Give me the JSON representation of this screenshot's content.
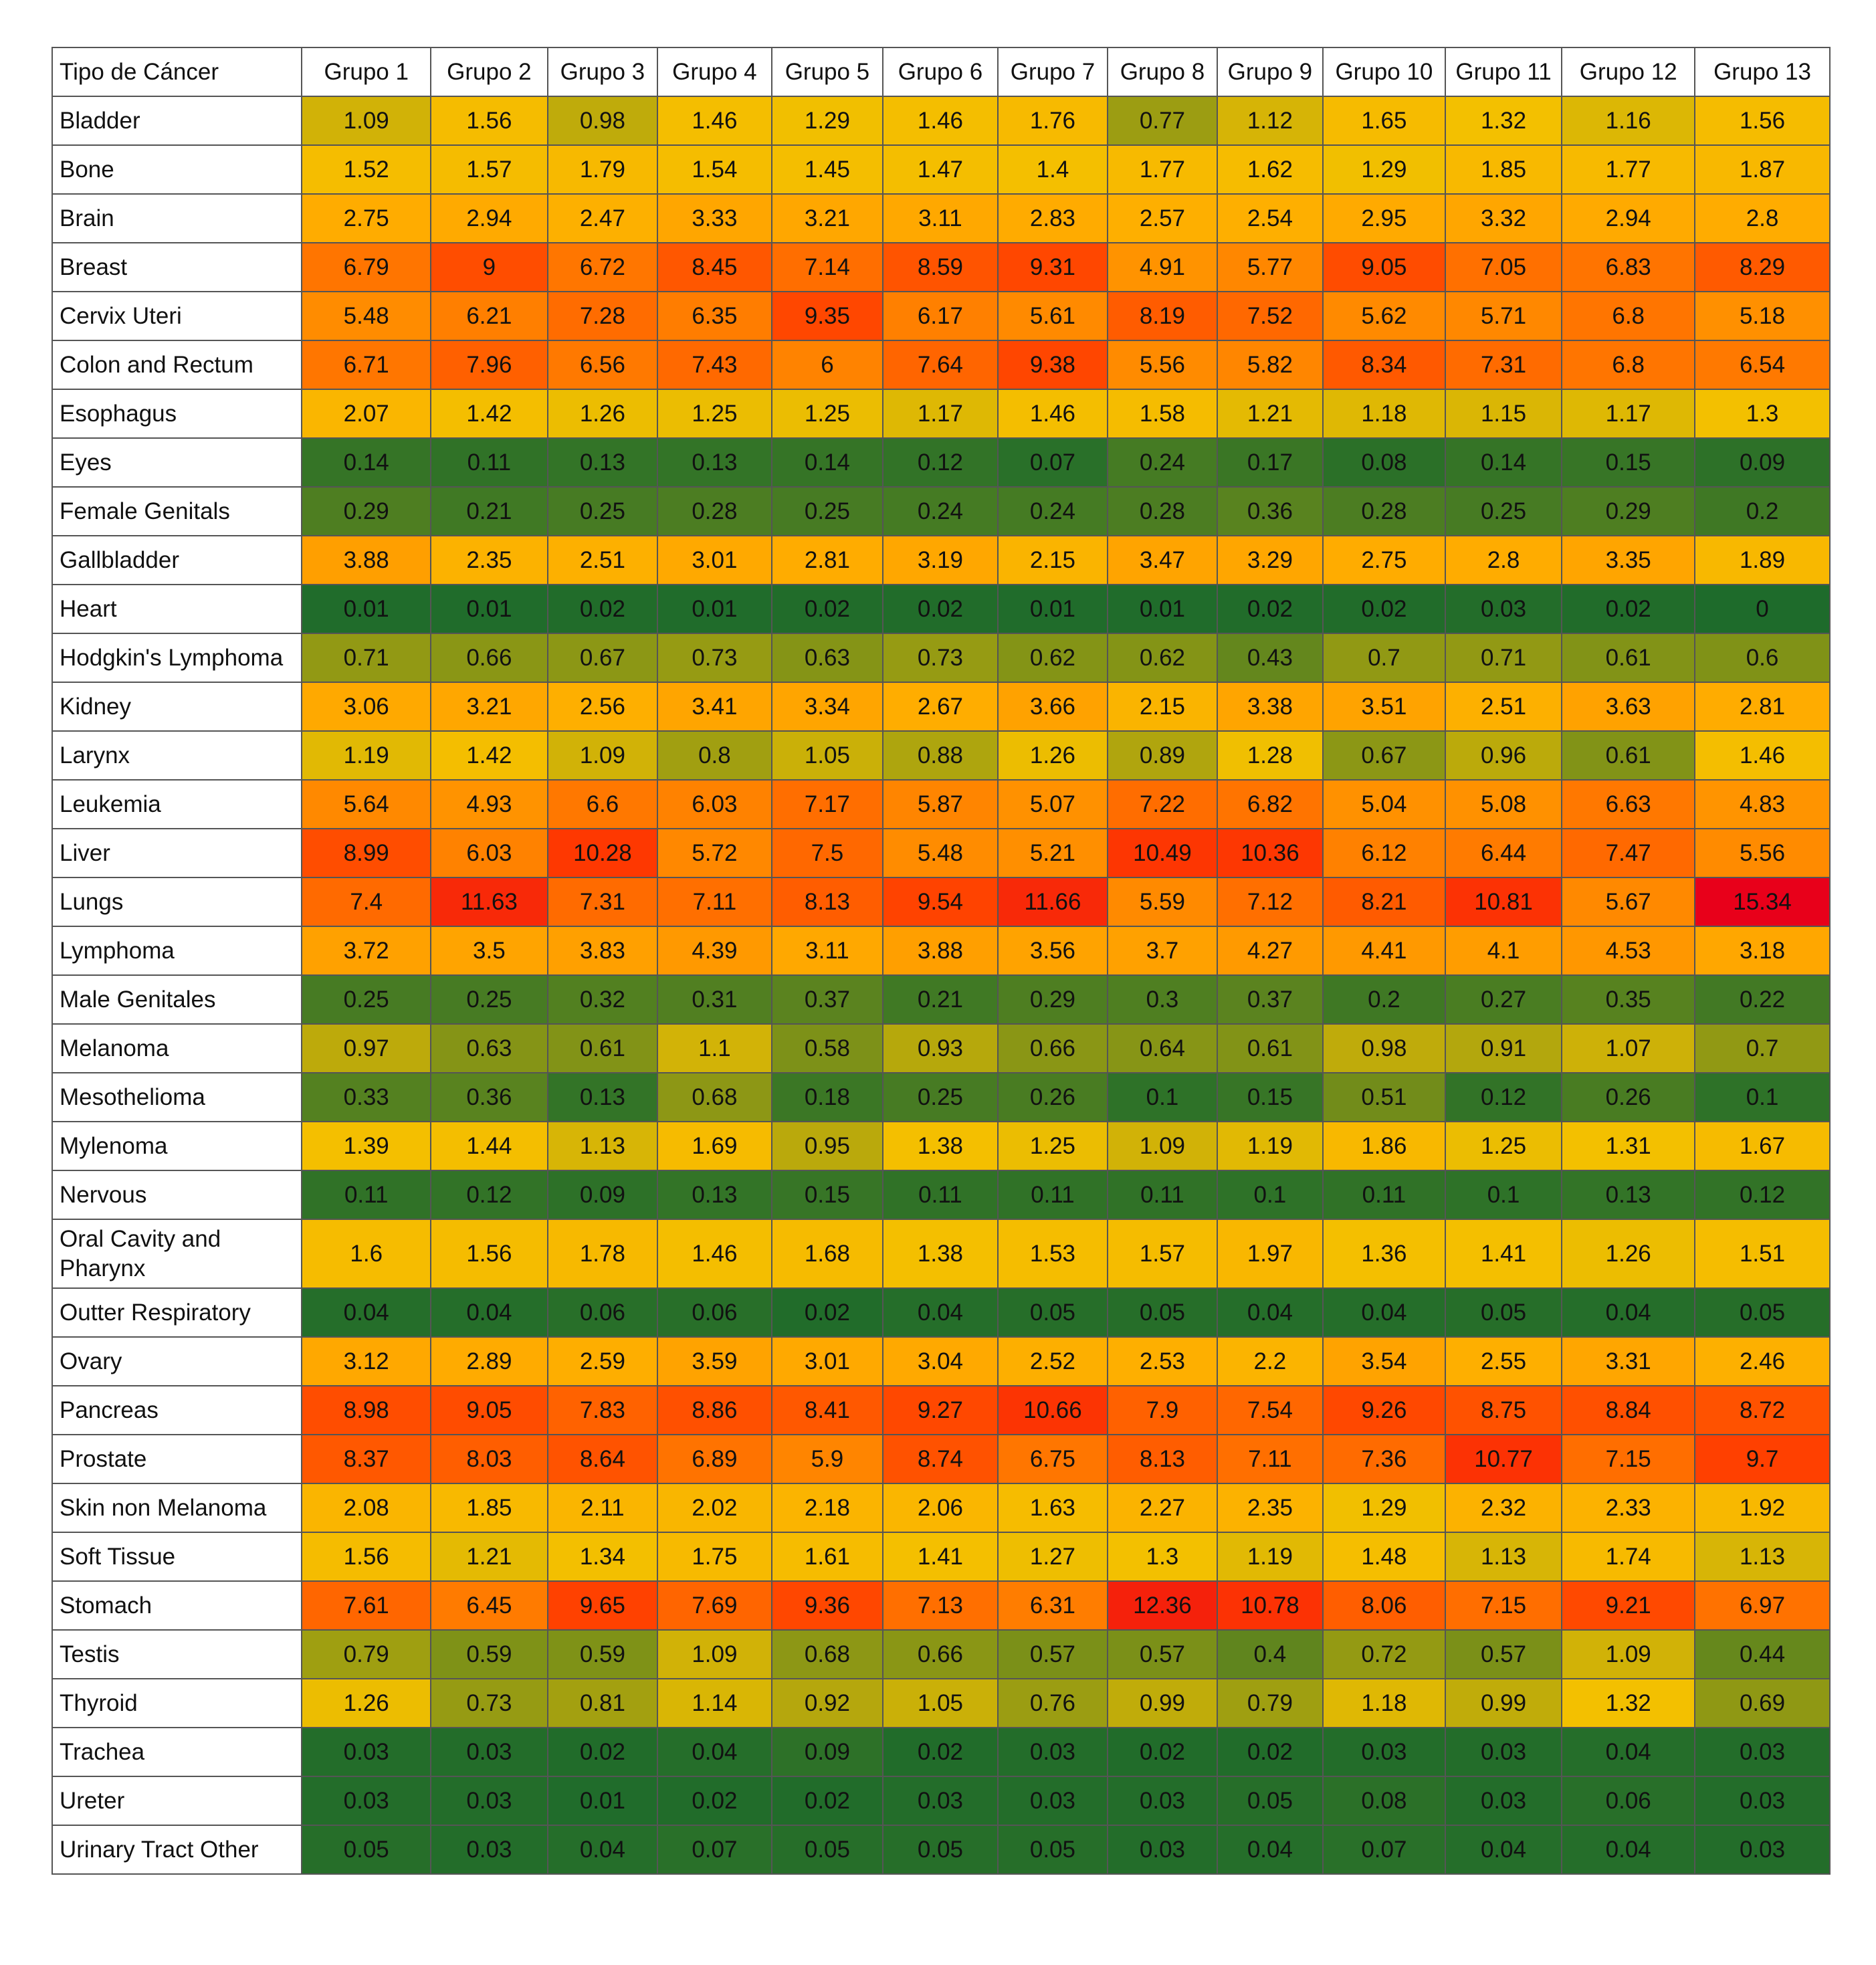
{
  "chart_data": {
    "type": "heatmap",
    "corner_label": "Tipo de Cáncer",
    "columns": [
      "Grupo 1",
      "Grupo 2",
      "Grupo 3",
      "Grupo 4",
      "Grupo 5",
      "Grupo 6",
      "Grupo 7",
      "Grupo 8",
      "Grupo 9",
      "Grupo 10",
      "Grupo 11",
      "Grupo 12",
      "Grupo 13"
    ],
    "rows": [
      {
        "label": "Bladder",
        "values": [
          1.09,
          1.56,
          0.98,
          1.46,
          1.29,
          1.46,
          1.76,
          0.77,
          1.12,
          1.65,
          1.32,
          1.16,
          1.56
        ]
      },
      {
        "label": "Bone",
        "values": [
          1.52,
          1.57,
          1.79,
          1.54,
          1.45,
          1.47,
          1.4,
          1.77,
          1.62,
          1.29,
          1.85,
          1.77,
          1.87
        ]
      },
      {
        "label": "Brain",
        "values": [
          2.75,
          2.94,
          2.47,
          3.33,
          3.21,
          3.11,
          2.83,
          2.57,
          2.54,
          2.95,
          3.32,
          2.94,
          2.8
        ]
      },
      {
        "label": "Breast",
        "values": [
          6.79,
          9,
          6.72,
          8.45,
          7.14,
          8.59,
          9.31,
          4.91,
          5.77,
          9.05,
          7.05,
          6.83,
          8.29
        ]
      },
      {
        "label": "Cervix Uteri",
        "values": [
          5.48,
          6.21,
          7.28,
          6.35,
          9.35,
          6.17,
          5.61,
          8.19,
          7.52,
          5.62,
          5.71,
          6.8,
          5.18
        ]
      },
      {
        "label": "Colon and Rectum",
        "values": [
          6.71,
          7.96,
          6.56,
          7.43,
          6,
          7.64,
          9.38,
          5.56,
          5.82,
          8.34,
          7.31,
          6.8,
          6.54
        ]
      },
      {
        "label": "Esophagus",
        "values": [
          2.07,
          1.42,
          1.26,
          1.25,
          1.25,
          1.17,
          1.46,
          1.58,
          1.21,
          1.18,
          1.15,
          1.17,
          1.3
        ]
      },
      {
        "label": "Eyes",
        "values": [
          0.14,
          0.11,
          0.13,
          0.13,
          0.14,
          0.12,
          0.07,
          0.24,
          0.17,
          0.08,
          0.14,
          0.15,
          0.09
        ]
      },
      {
        "label": "Female Genitals",
        "values": [
          0.29,
          0.21,
          0.25,
          0.28,
          0.25,
          0.24,
          0.24,
          0.28,
          0.36,
          0.28,
          0.25,
          0.29,
          0.2
        ]
      },
      {
        "label": "Gallbladder",
        "values": [
          3.88,
          2.35,
          2.51,
          3.01,
          2.81,
          3.19,
          2.15,
          3.47,
          3.29,
          2.75,
          2.8,
          3.35,
          1.89
        ]
      },
      {
        "label": "Heart",
        "values": [
          0.01,
          0.01,
          0.02,
          0.01,
          0.02,
          0.02,
          0.01,
          0.01,
          0.02,
          0.02,
          0.03,
          0.02,
          0
        ]
      },
      {
        "label": "Hodgkin's Lymphoma",
        "values": [
          0.71,
          0.66,
          0.67,
          0.73,
          0.63,
          0.73,
          0.62,
          0.62,
          0.43,
          0.7,
          0.71,
          0.61,
          0.6
        ]
      },
      {
        "label": "Kidney",
        "values": [
          3.06,
          3.21,
          2.56,
          3.41,
          3.34,
          2.67,
          3.66,
          2.15,
          3.38,
          3.51,
          2.51,
          3.63,
          2.81
        ]
      },
      {
        "label": "Larynx",
        "values": [
          1.19,
          1.42,
          1.09,
          0.8,
          1.05,
          0.88,
          1.26,
          0.89,
          1.28,
          0.67,
          0.96,
          0.61,
          1.46
        ]
      },
      {
        "label": "Leukemia",
        "values": [
          5.64,
          4.93,
          6.6,
          6.03,
          7.17,
          5.87,
          5.07,
          7.22,
          6.82,
          5.04,
          5.08,
          6.63,
          4.83
        ]
      },
      {
        "label": "Liver",
        "values": [
          8.99,
          6.03,
          10.28,
          5.72,
          7.5,
          5.48,
          5.21,
          10.49,
          10.36,
          6.12,
          6.44,
          7.47,
          5.56
        ]
      },
      {
        "label": "Lungs",
        "values": [
          7.4,
          11.63,
          7.31,
          7.11,
          8.13,
          9.54,
          11.66,
          5.59,
          7.12,
          8.21,
          10.81,
          5.67,
          15.34
        ]
      },
      {
        "label": "Lymphoma",
        "values": [
          3.72,
          3.5,
          3.83,
          4.39,
          3.11,
          3.88,
          3.56,
          3.7,
          4.27,
          4.41,
          4.1,
          4.53,
          3.18
        ]
      },
      {
        "label": "Male Genitales",
        "values": [
          0.25,
          0.25,
          0.32,
          0.31,
          0.37,
          0.21,
          0.29,
          0.3,
          0.37,
          0.2,
          0.27,
          0.35,
          0.22
        ]
      },
      {
        "label": "Melanoma",
        "values": [
          0.97,
          0.63,
          0.61,
          1.1,
          0.58,
          0.93,
          0.66,
          0.64,
          0.61,
          0.98,
          0.91,
          1.07,
          0.7
        ]
      },
      {
        "label": "Mesothelioma",
        "values": [
          0.33,
          0.36,
          0.13,
          0.68,
          0.18,
          0.25,
          0.26,
          0.1,
          0.15,
          0.51,
          0.12,
          0.26,
          0.1
        ]
      },
      {
        "label": "Mylenoma",
        "values": [
          1.39,
          1.44,
          1.13,
          1.69,
          0.95,
          1.38,
          1.25,
          1.09,
          1.19,
          1.86,
          1.25,
          1.31,
          1.67
        ]
      },
      {
        "label": "Nervous",
        "values": [
          0.11,
          0.12,
          0.09,
          0.13,
          0.15,
          0.11,
          0.11,
          0.11,
          0.1,
          0.11,
          0.1,
          0.13,
          0.12
        ]
      },
      {
        "label": "Oral Cavity and Pharynx",
        "values": [
          1.6,
          1.56,
          1.78,
          1.46,
          1.68,
          1.38,
          1.53,
          1.57,
          1.97,
          1.36,
          1.41,
          1.26,
          1.51
        ]
      },
      {
        "label": "Outter Respiratory",
        "values": [
          0.04,
          0.04,
          0.06,
          0.06,
          0.02,
          0.04,
          0.05,
          0.05,
          0.04,
          0.04,
          0.05,
          0.04,
          0.05
        ]
      },
      {
        "label": "Ovary",
        "values": [
          3.12,
          2.89,
          2.59,
          3.59,
          3.01,
          3.04,
          2.52,
          2.53,
          2.2,
          3.54,
          2.55,
          3.31,
          2.46
        ]
      },
      {
        "label": "Pancreas",
        "values": [
          8.98,
          9.05,
          7.83,
          8.86,
          8.41,
          9.27,
          10.66,
          7.9,
          7.54,
          9.26,
          8.75,
          8.84,
          8.72
        ]
      },
      {
        "label": "Prostate",
        "values": [
          8.37,
          8.03,
          8.64,
          6.89,
          5.9,
          8.74,
          6.75,
          8.13,
          7.11,
          7.36,
          10.77,
          7.15,
          9.7
        ]
      },
      {
        "label": "Skin non Melanoma",
        "values": [
          2.08,
          1.85,
          2.11,
          2.02,
          2.18,
          2.06,
          1.63,
          2.27,
          2.35,
          1.29,
          2.32,
          2.33,
          1.92
        ]
      },
      {
        "label": "Soft Tissue",
        "values": [
          1.56,
          1.21,
          1.34,
          1.75,
          1.61,
          1.41,
          1.27,
          1.3,
          1.19,
          1.48,
          1.13,
          1.74,
          1.13
        ]
      },
      {
        "label": "Stomach",
        "values": [
          7.61,
          6.45,
          9.65,
          7.69,
          9.36,
          7.13,
          6.31,
          12.36,
          10.78,
          8.06,
          7.15,
          9.21,
          6.97
        ]
      },
      {
        "label": "Testis",
        "values": [
          0.79,
          0.59,
          0.59,
          1.09,
          0.68,
          0.66,
          0.57,
          0.57,
          0.4,
          0.72,
          0.57,
          1.09,
          0.44
        ]
      },
      {
        "label": "Thyroid",
        "values": [
          1.26,
          0.73,
          0.81,
          1.14,
          0.92,
          1.05,
          0.76,
          0.99,
          0.79,
          1.18,
          0.99,
          1.32,
          0.69
        ]
      },
      {
        "label": "Trachea",
        "values": [
          0.03,
          0.03,
          0.02,
          0.04,
          0.09,
          0.02,
          0.03,
          0.02,
          0.02,
          0.03,
          0.03,
          0.04,
          0.03
        ]
      },
      {
        "label": "Ureter",
        "values": [
          0.03,
          0.03,
          0.01,
          0.02,
          0.02,
          0.03,
          0.03,
          0.03,
          0.05,
          0.08,
          0.03,
          0.06,
          0.03
        ]
      },
      {
        "label": "Urinary Tract Other",
        "values": [
          0.05,
          0.03,
          0.04,
          0.07,
          0.05,
          0.05,
          0.05,
          0.03,
          0.04,
          0.07,
          0.04,
          0.04,
          0.03
        ]
      }
    ],
    "color_scale": [
      {
        "value": 0,
        "color": "#1e6b2b"
      },
      {
        "value": 1.3,
        "color": "#f3c000"
      },
      {
        "value": 2.7,
        "color": "#ffad00"
      },
      {
        "value": 5.5,
        "color": "#ff8c00"
      },
      {
        "value": 10,
        "color": "#ff3b00"
      },
      {
        "value": 15.34,
        "color": "#e8001a"
      }
    ]
  }
}
